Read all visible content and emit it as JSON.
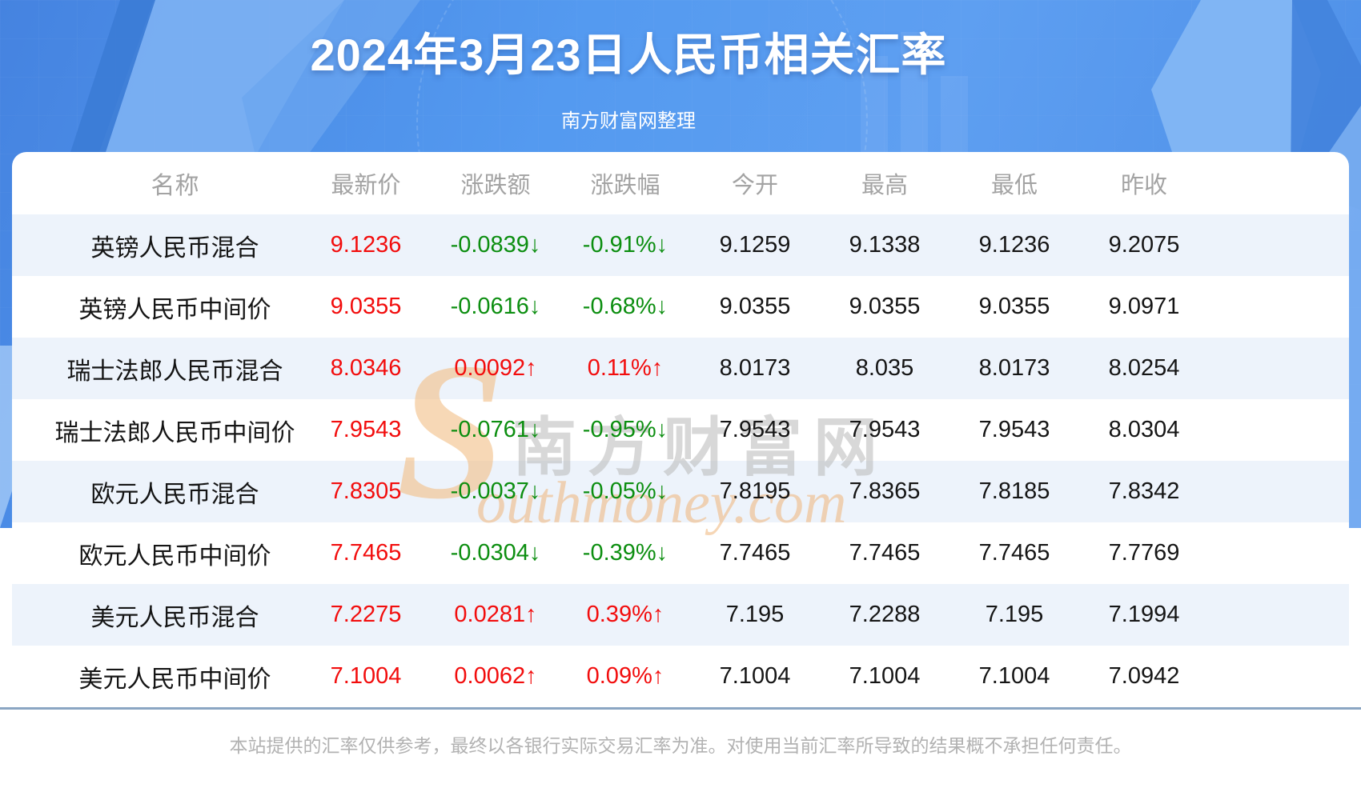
{
  "header": {
    "title": "2024年3月23日人民币相关汇率",
    "subtitle": "南方财富网整理"
  },
  "table": {
    "columns": [
      "名称",
      "最新价",
      "涨跌额",
      "涨跌幅",
      "今开",
      "最高",
      "最低",
      "昨收"
    ],
    "rows": [
      {
        "name": "英镑人民币混合",
        "latest": "9.1236",
        "change": "-0.0839↓",
        "change_pct": "-0.91%↓",
        "open": "9.1259",
        "high": "9.1338",
        "low": "9.1236",
        "prev_close": "9.2075",
        "trend": "down"
      },
      {
        "name": "英镑人民币中间价",
        "latest": "9.0355",
        "change": "-0.0616↓",
        "change_pct": "-0.68%↓",
        "open": "9.0355",
        "high": "9.0355",
        "low": "9.0355",
        "prev_close": "9.0971",
        "trend": "down"
      },
      {
        "name": "瑞士法郎人民币混合",
        "latest": "8.0346",
        "change": "0.0092↑",
        "change_pct": "0.11%↑",
        "open": "8.0173",
        "high": "8.035",
        "low": "8.0173",
        "prev_close": "8.0254",
        "trend": "up"
      },
      {
        "name": "瑞士法郎人民币中间价",
        "latest": "7.9543",
        "change": "-0.0761↓",
        "change_pct": "-0.95%↓",
        "open": "7.9543",
        "high": "7.9543",
        "low": "7.9543",
        "prev_close": "8.0304",
        "trend": "down"
      },
      {
        "name": "欧元人民币混合",
        "latest": "7.8305",
        "change": "-0.0037↓",
        "change_pct": "-0.05%↓",
        "open": "7.8195",
        "high": "7.8365",
        "low": "7.8185",
        "prev_close": "7.8342",
        "trend": "down"
      },
      {
        "name": "欧元人民币中间价",
        "latest": "7.7465",
        "change": "-0.0304↓",
        "change_pct": "-0.39%↓",
        "open": "7.7465",
        "high": "7.7465",
        "low": "7.7465",
        "prev_close": "7.7769",
        "trend": "down"
      },
      {
        "name": "美元人民币混合",
        "latest": "7.2275",
        "change": "0.0281↑",
        "change_pct": "0.39%↑",
        "open": "7.195",
        "high": "7.2288",
        "low": "7.195",
        "prev_close": "7.1994",
        "trend": "up"
      },
      {
        "name": "美元人民币中间价",
        "latest": "7.1004",
        "change": "0.0062↑",
        "change_pct": "0.09%↑",
        "open": "7.1004",
        "high": "7.1004",
        "low": "7.1004",
        "prev_close": "7.0942",
        "trend": "up"
      }
    ]
  },
  "watermark": {
    "s_glyph": "S",
    "cn_text": "南方财富网",
    "en_text": "outhmoney.com"
  },
  "footer": {
    "disclaimer": "本站提供的汇率仅供参考，最终以各银行实际交易汇率为准。对使用当前汇率所导致的结果概不承担任何责任。"
  },
  "colors": {
    "banner_blue": "#4e8fe8",
    "facet_light_blue": "#7db1f3",
    "facet_dark_blue": "#3c7cd6",
    "row_stripe": "#edf3fb",
    "up_red": "#f20d0d",
    "down_green": "#0c8e10",
    "header_gray": "#a3a3a3",
    "divider_blue_gray": "#8ba6c3"
  }
}
